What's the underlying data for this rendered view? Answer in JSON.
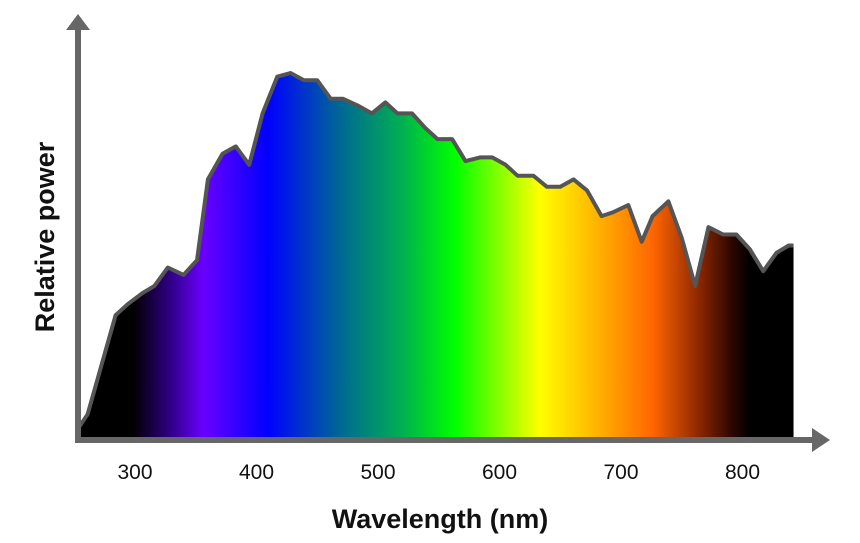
{
  "chart_data": {
    "type": "area",
    "title": "",
    "xlabel": "Wavelength (nm)",
    "ylabel": "Relative power",
    "xlim": [
      253,
      842
    ],
    "ylim": [
      0,
      1.14
    ],
    "grid": false,
    "x_ticks": [
      300,
      400,
      500,
      600,
      700,
      800
    ],
    "x_tick_labels": [
      "300",
      "400",
      "500",
      "600",
      "700",
      "800"
    ],
    "x": [
      255,
      261,
      284,
      294,
      306,
      316,
      327,
      340,
      351,
      360,
      372,
      383,
      394,
      405,
      417,
      428,
      439,
      450,
      461,
      471,
      484,
      495,
      506,
      516,
      528,
      539,
      549,
      561,
      572,
      584,
      594,
      605,
      615,
      628,
      639,
      650,
      661,
      672,
      684,
      693,
      706,
      717,
      726,
      739,
      750,
      761,
      772,
      784,
      795,
      806,
      817,
      828,
      838
    ],
    "values": [
      0.04,
      0.07,
      0.34,
      0.37,
      0.4,
      0.42,
      0.47,
      0.45,
      0.49,
      0.71,
      0.78,
      0.8,
      0.75,
      0.89,
      0.99,
      1.0,
      0.98,
      0.98,
      0.93,
      0.93,
      0.91,
      0.89,
      0.92,
      0.89,
      0.89,
      0.85,
      0.82,
      0.82,
      0.76,
      0.77,
      0.77,
      0.75,
      0.72,
      0.72,
      0.69,
      0.69,
      0.71,
      0.68,
      0.61,
      0.62,
      0.64,
      0.54,
      0.61,
      0.65,
      0.55,
      0.42,
      0.58,
      0.56,
      0.56,
      0.52,
      0.46,
      0.51,
      0.53
    ],
    "fill_gradient": [
      {
        "nm": 298,
        "color": "#000000"
      },
      {
        "nm": 330,
        "color": "#30008a"
      },
      {
        "nm": 356,
        "color": "#6a00ff"
      },
      {
        "nm": 409,
        "color": "#0000ff"
      },
      {
        "nm": 470,
        "color": "#006a92"
      },
      {
        "nm": 520,
        "color": "#00b050"
      },
      {
        "nm": 563,
        "color": "#00ff00"
      },
      {
        "nm": 633,
        "color": "#ffff00"
      },
      {
        "nm": 670,
        "color": "#ffc400"
      },
      {
        "nm": 726,
        "color": "#ff6600"
      },
      {
        "nm": 765,
        "color": "#8a2600"
      },
      {
        "nm": 790,
        "color": "#300800"
      },
      {
        "nm": 806,
        "color": "#000000"
      }
    ],
    "line_color": "#555555",
    "axis_color": "#676767"
  }
}
